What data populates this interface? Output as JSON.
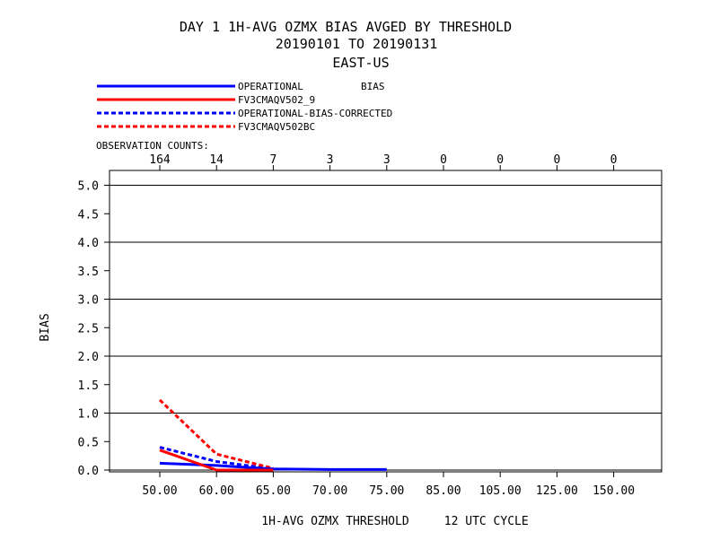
{
  "title": {
    "line1": "DAY 1   1H-AVG OZMX BIAS   AVGED BY THRESHOLD",
    "line2": "20190101 TO 20190131",
    "line3": "EAST-US"
  },
  "legend_stat_label": "BIAS",
  "observation_counts_label": "OBSERVATION COUNTS:",
  "chart_data": {
    "type": "line",
    "xlabel": "1H-AVG OZMX THRESHOLD     12 UTC CYCLE",
    "ylabel": "BIAS",
    "categories": [
      "50.00",
      "60.00",
      "65.00",
      "70.00",
      "75.00",
      "85.00",
      "105.00",
      "125.00",
      "150.00"
    ],
    "observation_counts": [
      "164",
      "14",
      "7",
      "3",
      "3",
      "0",
      "0",
      "0",
      "0"
    ],
    "yticks": [
      "0.0",
      "0.5",
      "1.0",
      "1.5",
      "2.0",
      "2.5",
      "3.0",
      "3.5",
      "4.0",
      "4.5",
      "5.0"
    ],
    "ylim": [
      0,
      5.25
    ],
    "grid_y": [
      0,
      1,
      2,
      3,
      4,
      5
    ],
    "series": [
      {
        "name": "OPERATIONAL",
        "color": "#0000ff",
        "dashed": false,
        "values": [
          0.12,
          0.08,
          0.02,
          0.01,
          0.01,
          null,
          null,
          null,
          null
        ]
      },
      {
        "name": "FV3CMAQV502_9",
        "color": "#ff0000",
        "dashed": false,
        "values": [
          0.35,
          0.0,
          0.0,
          null,
          null,
          null,
          null,
          null,
          null
        ]
      },
      {
        "name": "OPERATIONAL-BIAS-CORRECTED",
        "color": "#0000ff",
        "dashed": true,
        "values": [
          0.4,
          0.15,
          0.02,
          null,
          null,
          null,
          null,
          null,
          null
        ]
      },
      {
        "name": "FV3CMAQV502BC",
        "color": "#ff0000",
        "dashed": true,
        "values": [
          1.23,
          0.28,
          0.03,
          null,
          null,
          null,
          null,
          null,
          null
        ]
      }
    ]
  }
}
